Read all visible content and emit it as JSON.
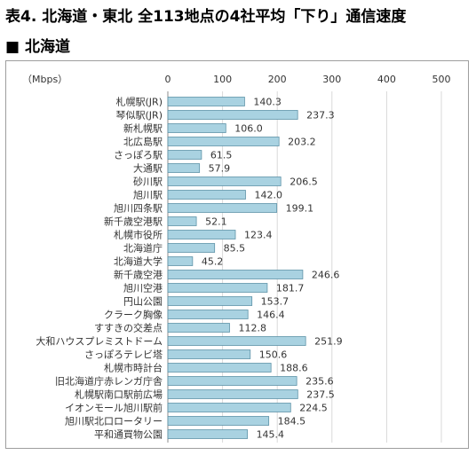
{
  "page_title": "表4. 北海道・東北 全113地点の4社平均「下り」通信速度",
  "section_heading": "■ 北海道",
  "colors": {
    "bar_fill": "#a9d2e1",
    "bar_stroke": "#5e93a8",
    "grid": "#d9d9d9",
    "text": "#333333"
  },
  "chart_data": {
    "type": "bar",
    "orientation": "horizontal",
    "title": "",
    "unit_label": "（Mbps）",
    "xlim": [
      0,
      500
    ],
    "ticks": [
      0,
      100,
      200,
      300,
      400,
      500
    ],
    "axis_position": "top",
    "grid": true,
    "data_labels": true,
    "categories": [
      "札幌駅(JR)",
      "琴似駅(JR)",
      "新札幌駅",
      "北広島駅",
      "さっぽろ駅",
      "大通駅",
      "砂川駅",
      "旭川駅",
      "旭川四条駅",
      "新千歳空港駅",
      "札幌市役所",
      "北海道庁",
      "北海道大学",
      "新千歳空港",
      "旭川空港",
      "円山公園",
      "クラーク胸像",
      "すすきの交差点",
      "大和ハウスプレミストドーム",
      "さっぽろテレビ塔",
      "札幌市時計台",
      "旧北海道庁赤レンガ庁舎",
      "札幌駅南口駅前広場",
      "イオンモール旭川駅前",
      "旭川駅北口ロータリー",
      "平和通買物公園"
    ],
    "values": [
      140.3,
      237.3,
      106.0,
      203.2,
      61.5,
      57.9,
      206.5,
      142.0,
      199.1,
      52.1,
      123.4,
      85.5,
      45.2,
      246.6,
      181.7,
      153.7,
      146.4,
      112.8,
      251.9,
      150.6,
      188.6,
      235.6,
      237.5,
      224.5,
      184.5,
      145.4
    ],
    "value_labels": [
      "140.3",
      "237.3",
      "106.0",
      "203.2",
      "61.5",
      "57.9",
      "206.5",
      "142.0",
      "199.1",
      "52.1",
      "123.4",
      "85.5",
      "45.2",
      "246.6",
      "181.7",
      "153.7",
      "146.4",
      "112.8",
      "251.9",
      "150.6",
      "188.6",
      "235.6",
      "237.5",
      "224.5",
      "184.5",
      "145.4"
    ]
  }
}
